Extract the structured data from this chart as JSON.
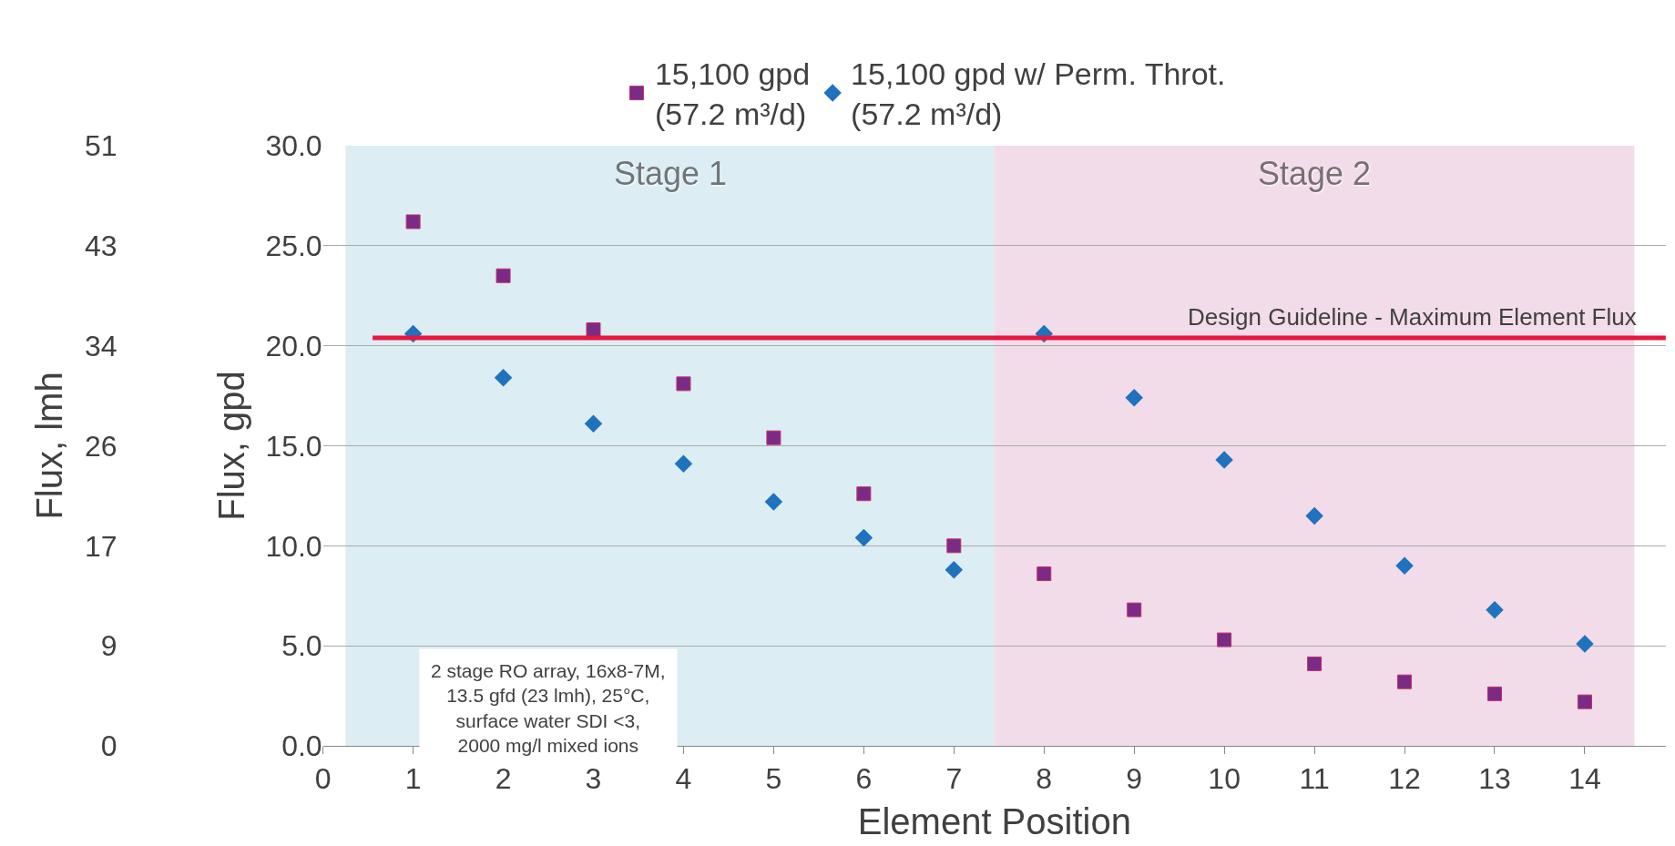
{
  "chart_data": {
    "type": "scatter",
    "xlabel": "Element Position",
    "ylabel": "Flux, gpd",
    "y2label": "Flux, lmh",
    "x": [
      1,
      2,
      3,
      4,
      5,
      6,
      7,
      8,
      9,
      10,
      11,
      12,
      13,
      14
    ],
    "series": [
      {
        "name": "15,100 gpd\n(57.2 m³/d)",
        "color": "#7b2a86",
        "marker": "square",
        "values": [
          26.2,
          23.5,
          20.8,
          18.1,
          15.4,
          12.6,
          10.0,
          8.6,
          6.8,
          5.3,
          4.1,
          3.2,
          2.6,
          2.2
        ]
      },
      {
        "name": "15,100 gpd w/ Perm. Throt.\n(57.2 m³/d)",
        "color": "#1f72bd",
        "marker": "diamond",
        "values": [
          20.6,
          18.4,
          16.1,
          14.1,
          12.2,
          10.4,
          8.8,
          20.6,
          17.4,
          14.3,
          11.5,
          9.0,
          6.8,
          5.1
        ]
      }
    ],
    "xlim": [
      0,
      14.9
    ],
    "xticks": [
      0,
      1,
      2,
      3,
      4,
      5,
      6,
      7,
      8,
      9,
      10,
      11,
      12,
      13,
      14
    ],
    "ylim": [
      0,
      30
    ],
    "yticks": [
      {
        "value": 0,
        "label": "0.0"
      },
      {
        "value": 5,
        "label": "5.0"
      },
      {
        "value": 10,
        "label": "10.0"
      },
      {
        "value": 15,
        "label": "15.0"
      },
      {
        "value": 20,
        "label": "20.0"
      },
      {
        "value": 25,
        "label": "25.0"
      },
      {
        "value": 30,
        "label": "30.0"
      }
    ],
    "y2lim": [
      0,
      51
    ],
    "y2ticks": [
      0,
      {
        "value": 8.5,
        "label": "9"
      },
      17,
      {
        "value": 25.5,
        "label": "26"
      },
      34,
      {
        "value": 42.5,
        "label": "43"
      },
      51
    ],
    "grid": "y",
    "legend": "top",
    "bands": [
      {
        "axis": "x",
        "from": 0.25,
        "to": 7.45,
        "label": "Stage 1",
        "color": "#dcedf3"
      },
      {
        "axis": "x",
        "from": 7.45,
        "to": 14.55,
        "label": "Stage 2",
        "color": "#f2dce9"
      }
    ],
    "ref_lines": [
      {
        "axis": "y",
        "value": 20.4,
        "label": "Design Guideline - Maximum Element Flux",
        "color": "#e8173f"
      }
    ],
    "annotations": [
      "2 stage RO array, 16x8-7M,\n13.5 gfd (23 lmh), 25°C,\nsurface water SDI <3,\n2000 mg/l mixed ions"
    ]
  }
}
